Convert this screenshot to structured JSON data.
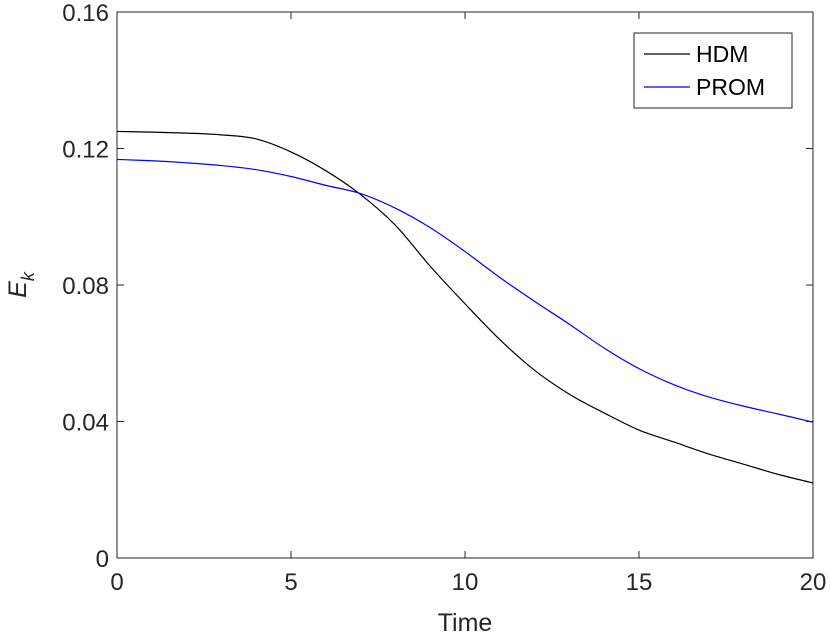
{
  "chart_data": {
    "type": "line",
    "xlabel": "Time",
    "ylabel": "E",
    "ylabel_subscript": "k",
    "xlim": [
      0,
      20
    ],
    "ylim": [
      0,
      0.16
    ],
    "xticks": [
      0,
      5,
      10,
      15,
      20
    ],
    "xtick_labels": [
      "0",
      "5",
      "10",
      "15",
      "20"
    ],
    "yticks": [
      0,
      0.04,
      0.08,
      0.12,
      0.16
    ],
    "ytick_labels": [
      "0",
      "0.04",
      "0.08",
      "0.12",
      "0.16"
    ],
    "grid": false,
    "legend_position": "top-right",
    "series": [
      {
        "name": "HDM",
        "color": "#000000",
        "x": [
          0,
          1,
          2,
          3,
          4,
          5,
          6,
          7,
          8,
          9,
          10,
          11,
          12,
          13,
          14,
          15,
          16,
          17,
          18,
          19,
          20
        ],
        "y": [
          0.125,
          0.1248,
          0.1245,
          0.124,
          0.1228,
          0.119,
          0.1135,
          0.1065,
          0.0975,
          0.0855,
          0.0745,
          0.064,
          0.055,
          0.048,
          0.0425,
          0.0375,
          0.034,
          0.0305,
          0.0275,
          0.0245,
          0.022
        ]
      },
      {
        "name": "PROM",
        "color": "#0000ff",
        "x": [
          0,
          1,
          2,
          3,
          4,
          5,
          6,
          7,
          8,
          9,
          10,
          11,
          12,
          13,
          14,
          15,
          16,
          17,
          18,
          19,
          20
        ],
        "y": [
          0.1168,
          0.1164,
          0.1158,
          0.115,
          0.1138,
          0.1118,
          0.1092,
          0.1068,
          0.1025,
          0.0968,
          0.0898,
          0.0822,
          0.0752,
          0.0685,
          0.0615,
          0.0555,
          0.0508,
          0.0472,
          0.0445,
          0.0422,
          0.0398
        ]
      }
    ]
  },
  "legend": {
    "items": [
      {
        "label": "HDM",
        "color": "#000000"
      },
      {
        "label": "PROM",
        "color": "#0000ff"
      }
    ]
  }
}
